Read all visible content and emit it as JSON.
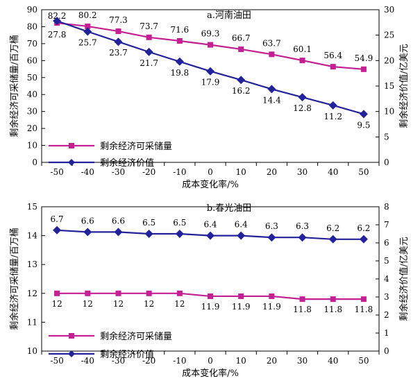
{
  "chart_data": [
    {
      "type": "line",
      "title": "a.河南油田",
      "xlabel": "成本变化率/%",
      "ylabel": "剩余经济可采储量/百万桶",
      "y2label": "剩余经济价值/亿美元",
      "categories": [
        "-50",
        "-40",
        "-30",
        "-20",
        "-10",
        "0",
        "10",
        "20",
        "30",
        "40",
        "50"
      ],
      "x": [
        -50,
        -40,
        -30,
        -20,
        -10,
        0,
        10,
        20,
        30,
        40,
        50
      ],
      "ylim": [
        0,
        90
      ],
      "yticks": [
        "0",
        "10",
        "20",
        "30",
        "40",
        "50",
        "60",
        "70",
        "80",
        "90"
      ],
      "y2lim": [
        0,
        30
      ],
      "y2ticks": [
        "0",
        "5",
        "10",
        "15",
        "20",
        "25",
        "30"
      ],
      "grid": false,
      "legend_position": "lower-left",
      "series": [
        {
          "name": "剩余经济可采储量",
          "axis": "left",
          "marker": "square",
          "color": "#c41f93",
          "values": [
            82.2,
            80.2,
            77.3,
            73.7,
            71.6,
            69.3,
            66.7,
            63.7,
            60.1,
            56.4,
            54.9
          ],
          "labels": [
            "82.2",
            "80.2",
            "77.3",
            "73.7",
            "71.6",
            "69.3",
            "66.7",
            "63.7",
            "60.1",
            "56.4",
            "54.9"
          ]
        },
        {
          "name": "剩余经济价值",
          "axis": "right",
          "marker": "diamond",
          "color": "#22229a",
          "values": [
            27.8,
            25.7,
            23.7,
            21.7,
            19.8,
            17.9,
            16.2,
            14.4,
            12.8,
            11.2,
            9.5
          ],
          "labels": [
            "27.8",
            "25.7",
            "23.7",
            "21.7",
            "19.8",
            "17.9",
            "16.2",
            "14.4",
            "12.8",
            "11.2",
            "9.5"
          ]
        }
      ]
    },
    {
      "type": "line",
      "title": "b.春光油田",
      "xlabel": "成本变化率/%",
      "ylabel": "剩余经济可采储量/百万桶",
      "y2label": "剩余经济价值/亿美元",
      "categories": [
        "-50",
        "-40",
        "-30",
        "-20",
        "-10",
        "0",
        "10",
        "20",
        "30",
        "40",
        "50"
      ],
      "x": [
        -50,
        -40,
        -30,
        -20,
        -10,
        0,
        10,
        20,
        30,
        40,
        50
      ],
      "ylim": [
        10,
        15
      ],
      "yticks": [
        "10",
        "11",
        "12",
        "13",
        "14",
        "15"
      ],
      "y2lim": [
        0,
        8
      ],
      "y2ticks": [
        "0",
        "1",
        "2",
        "3",
        "4",
        "5",
        "6",
        "7",
        "8"
      ],
      "grid": false,
      "legend_position": "lower-left",
      "series": [
        {
          "name": "剩余经济可采储量",
          "axis": "left",
          "marker": "square",
          "color": "#c41f93",
          "values": [
            12,
            12,
            12,
            12,
            12,
            11.9,
            11.9,
            11.9,
            11.8,
            11.8,
            11.8
          ],
          "labels": [
            "12",
            "12",
            "12",
            "12",
            "12",
            "11.9",
            "11.9",
            "11.9",
            "11.8",
            "11.8",
            "11.8"
          ]
        },
        {
          "name": "剩余经济价值",
          "axis": "right",
          "marker": "diamond",
          "color": "#22229a",
          "values": [
            6.7,
            6.6,
            6.6,
            6.5,
            6.5,
            6.4,
            6.4,
            6.3,
            6.3,
            6.2,
            6.2
          ],
          "labels": [
            "6.7",
            "6.6",
            "6.6",
            "6.5",
            "6.5",
            "6.4",
            "6.4",
            "6.3",
            "6.3",
            "6.2",
            "6.2"
          ]
        }
      ]
    }
  ]
}
